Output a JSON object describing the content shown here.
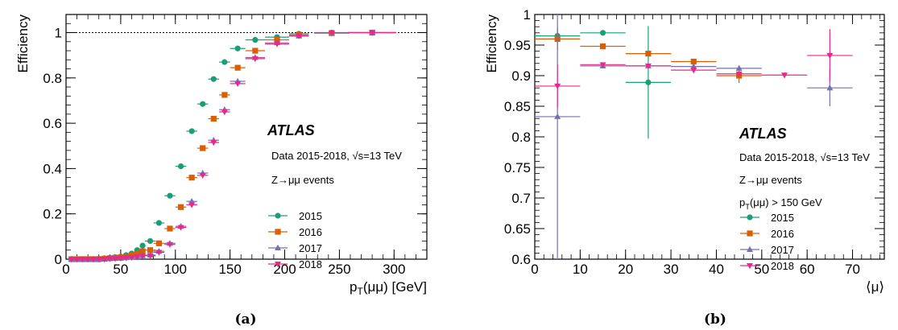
{
  "captions": [
    "(a)",
    "(b)"
  ],
  "chart_data": [
    {
      "type": "scatter",
      "ylabel": "Efficiency",
      "xlabel": "p_T(μμ) [GeV]",
      "xlim": [
        0,
        330
      ],
      "ylim": [
        0,
        1.08
      ],
      "xticks": [
        0,
        50,
        100,
        150,
        200,
        250,
        300
      ],
      "yticks": [
        0,
        0.2,
        0.4,
        0.6,
        0.8,
        1
      ],
      "reference_line": 1.0,
      "annotation": {
        "brand": "ATLAS",
        "lines": [
          "Data 2015-2018, √s=13 TeV",
          "Z→μμ events"
        ]
      },
      "legend_position": "middle-right",
      "series": [
        {
          "name": "2015",
          "color": "#1b9e77",
          "marker": "circle",
          "x": [
            5,
            10,
            15,
            20,
            25,
            30,
            35,
            40,
            45,
            50,
            55,
            60,
            65,
            70,
            77,
            85,
            95,
            105,
            115,
            125,
            135,
            145,
            157,
            173,
            193,
            213,
            243,
            280
          ],
          "xerr": [
            2.5,
            2.5,
            2.5,
            2.5,
            2.5,
            2.5,
            2.5,
            2.5,
            2.5,
            2.5,
            2.5,
            2.5,
            2.5,
            2.5,
            5,
            5,
            5,
            5,
            5,
            5,
            5,
            5,
            7,
            9,
            11,
            9,
            16,
            22
          ],
          "y": [
            0.0,
            0.0,
            0.0,
            0.0,
            0.0,
            0.002,
            0.004,
            0.006,
            0.009,
            0.012,
            0.018,
            0.025,
            0.04,
            0.06,
            0.08,
            0.16,
            0.28,
            0.41,
            0.565,
            0.685,
            0.795,
            0.87,
            0.93,
            0.968,
            0.98,
            0.995,
            1.0,
            1.0
          ]
        },
        {
          "name": "2016",
          "color": "#d95f02",
          "marker": "square",
          "x": [
            5,
            10,
            15,
            20,
            25,
            30,
            35,
            40,
            45,
            50,
            55,
            60,
            65,
            70,
            77,
            85,
            95,
            105,
            115,
            125,
            135,
            145,
            157,
            173,
            193,
            213,
            243,
            280
          ],
          "xerr": [
            2.5,
            2.5,
            2.5,
            2.5,
            2.5,
            2.5,
            2.5,
            2.5,
            2.5,
            2.5,
            2.5,
            2.5,
            2.5,
            2.5,
            5,
            5,
            5,
            5,
            5,
            5,
            5,
            5,
            7,
            9,
            11,
            9,
            16,
            22
          ],
          "y": [
            0.0,
            0.0,
            0.0,
            0.0,
            0.0,
            0.0,
            0.002,
            0.004,
            0.006,
            0.008,
            0.012,
            0.018,
            0.025,
            0.035,
            0.04,
            0.07,
            0.135,
            0.23,
            0.36,
            0.49,
            0.62,
            0.725,
            0.845,
            0.92,
            0.968,
            0.99,
            0.998,
            1.0
          ]
        },
        {
          "name": "2017",
          "color": "#7570b3",
          "marker": "triangle-up",
          "x": [
            5,
            10,
            15,
            20,
            25,
            30,
            35,
            40,
            45,
            50,
            55,
            60,
            65,
            70,
            77,
            85,
            95,
            105,
            115,
            125,
            135,
            145,
            157,
            173,
            193,
            213,
            243,
            280
          ],
          "xerr": [
            2.5,
            2.5,
            2.5,
            2.5,
            2.5,
            2.5,
            2.5,
            2.5,
            2.5,
            2.5,
            2.5,
            2.5,
            2.5,
            2.5,
            5,
            5,
            5,
            5,
            5,
            5,
            5,
            5,
            7,
            9,
            11,
            9,
            16,
            22
          ],
          "y": [
            0.0,
            0.0,
            0.0,
            0.0,
            0.0,
            0.0,
            0.0,
            0.002,
            0.003,
            0.004,
            0.006,
            0.008,
            0.01,
            0.015,
            0.018,
            0.035,
            0.07,
            0.145,
            0.255,
            0.38,
            0.525,
            0.66,
            0.785,
            0.89,
            0.955,
            0.985,
            0.998,
            1.0
          ]
        },
        {
          "name": "2018",
          "color": "#e7298a",
          "marker": "triangle-down",
          "x": [
            5,
            10,
            15,
            20,
            25,
            30,
            35,
            40,
            45,
            50,
            55,
            60,
            65,
            70,
            77,
            85,
            95,
            105,
            115,
            125,
            135,
            145,
            157,
            173,
            193,
            213,
            243,
            280
          ],
          "xerr": [
            2.5,
            2.5,
            2.5,
            2.5,
            2.5,
            2.5,
            2.5,
            2.5,
            2.5,
            2.5,
            2.5,
            2.5,
            2.5,
            2.5,
            5,
            5,
            5,
            5,
            5,
            5,
            5,
            5,
            7,
            9,
            11,
            9,
            16,
            22
          ],
          "y": [
            0.0,
            0.0,
            0.0,
            0.0,
            0.0,
            0.0,
            0.0,
            0.002,
            0.003,
            0.004,
            0.006,
            0.008,
            0.01,
            0.015,
            0.015,
            0.03,
            0.065,
            0.14,
            0.24,
            0.37,
            0.515,
            0.65,
            0.775,
            0.885,
            0.95,
            0.985,
            0.998,
            1.0
          ]
        }
      ]
    },
    {
      "type": "scatter",
      "ylabel": "Efficiency",
      "xlabel": "⟨μ⟩",
      "xlim": [
        0,
        77
      ],
      "ylim": [
        0.6,
        1.0
      ],
      "xticks": [
        0,
        10,
        20,
        30,
        40,
        50,
        60,
        70
      ],
      "yticks": [
        0.6,
        0.65,
        0.7,
        0.75,
        0.8,
        0.85,
        0.9,
        0.95,
        1
      ],
      "ytick_labels": [
        "0.6",
        "0.65",
        "0.7",
        "0.75",
        "0.8",
        "0.85",
        "0.9",
        "0.95",
        "1"
      ],
      "annotation": {
        "brand": "ATLAS",
        "lines": [
          "Data 2015-2018, √s=13 TeV",
          "Z→μμ events",
          "p_T(μμ) > 150 GeV"
        ]
      },
      "legend_position": "bottom-right",
      "series": [
        {
          "name": "2015",
          "color": "#1b9e77",
          "marker": "circle",
          "x": [
            5,
            15,
            25
          ],
          "xerr": [
            5,
            5,
            5
          ],
          "y": [
            0.965,
            0.97,
            0.889
          ],
          "yerr": [
            0.012,
            0.004,
            0.092
          ]
        },
        {
          "name": "2016",
          "color": "#d95f02",
          "marker": "square",
          "x": [
            5,
            15,
            25,
            35,
            45
          ],
          "xerr": [
            5,
            5,
            5,
            5,
            5
          ],
          "y": [
            0.96,
            0.948,
            0.936,
            0.923,
            0.9
          ],
          "yerr": [
            0.018,
            0.003,
            0.004,
            0.004,
            0.012
          ]
        },
        {
          "name": "2017",
          "color": "#7570b3",
          "marker": "triangle-up",
          "x": [
            5,
            15,
            25,
            35,
            45,
            65
          ],
          "xerr": [
            5,
            5,
            5,
            5,
            5,
            5
          ],
          "y": [
            0.833,
            0.916,
            0.916,
            0.915,
            0.912,
            0.88
          ],
          "yerr": [
            0.24,
            0.004,
            0.002,
            0.002,
            0.004,
            0.03
          ]
        },
        {
          "name": "2018",
          "color": "#e7298a",
          "marker": "triangle-down",
          "x": [
            5,
            15,
            25,
            35,
            45,
            55,
            65
          ],
          "xerr": [
            5,
            5,
            5,
            5,
            5,
            5,
            5
          ],
          "y": [
            0.883,
            0.918,
            0.916,
            0.909,
            0.903,
            0.901,
            0.933
          ],
          "yerr": [
            0.035,
            0.003,
            0.002,
            0.002,
            0.003,
            0.004,
            0.043
          ]
        }
      ]
    }
  ]
}
